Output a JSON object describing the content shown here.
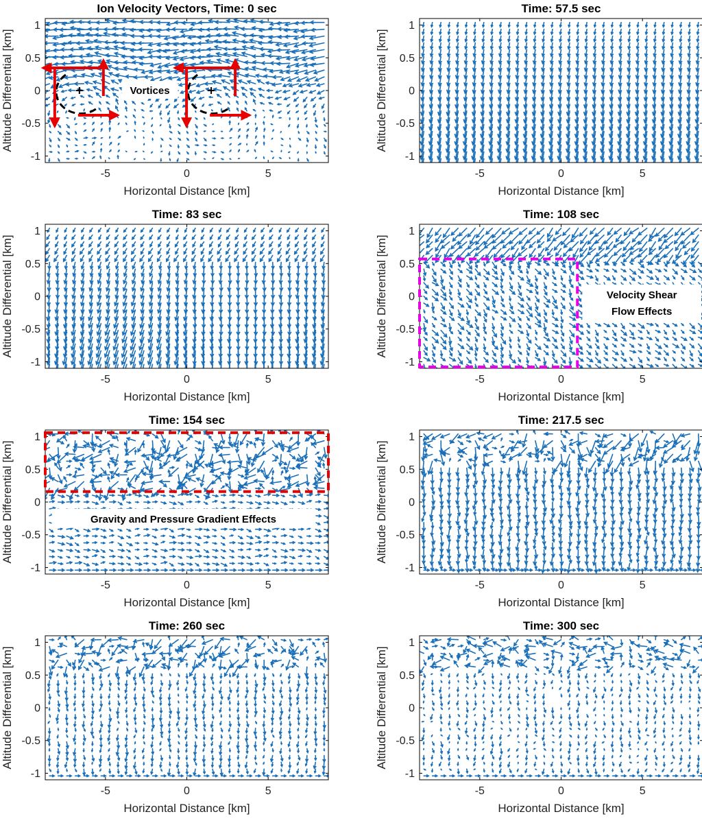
{
  "chart_data": [
    {
      "type": "quiver",
      "title": "Ion Velocity Vectors, Time: 0 sec",
      "time_sec": 0,
      "pattern": "vortices",
      "xlabel": "Horizontal Distance [km]",
      "ylabel": "Altitude Differential [km]",
      "xlim": [
        -8.7,
        8.7
      ],
      "ylim": [
        -1.1,
        1.1
      ],
      "xticks": [
        -5,
        0,
        5
      ],
      "xtick_labels": [
        "-5",
        "0",
        "5"
      ],
      "yticks": [
        1,
        0.5,
        0,
        -0.5,
        -1
      ],
      "ytick_labels": [
        "1",
        "0.5",
        "0",
        "-0.5",
        "-1"
      ],
      "annotations": [
        {
          "text": "Vortices",
          "type": "label"
        },
        {
          "type": "vortex-marker",
          "x": -6.6,
          "y": 0
        },
        {
          "type": "vortex-marker",
          "x": 1.5,
          "y": 0
        }
      ]
    },
    {
      "type": "quiver",
      "title": "Time: 57.5 sec",
      "time_sec": 57.5,
      "pattern": "downward-tilted",
      "xlabel": "Horizontal Distance [km]",
      "ylabel": "Altitude Differential [km]",
      "xlim": [
        -8.7,
        8.7
      ],
      "ylim": [
        -1.1,
        1.1
      ],
      "xticks": [
        -5,
        0,
        5
      ],
      "xtick_labels": [
        "-5",
        "0",
        "5"
      ],
      "yticks": [
        1,
        0.5,
        0,
        -0.5,
        -1
      ],
      "ytick_labels": [
        "1",
        "0.5",
        "0",
        "-0.5",
        "-1"
      ],
      "annotations": []
    },
    {
      "type": "quiver",
      "title": "Time: 83 sec",
      "time_sec": 83,
      "pattern": "downward-curved",
      "xlabel": "Horizontal Distance [km]",
      "ylabel": "Altitude Differential [km]",
      "xlim": [
        -8.7,
        8.7
      ],
      "ylim": [
        -1.1,
        1.1
      ],
      "xticks": [
        -5,
        0,
        5
      ],
      "xtick_labels": [
        "-5",
        "0",
        "5"
      ],
      "yticks": [
        1,
        0.5,
        0,
        -0.5,
        -1
      ],
      "ytick_labels": [
        "1",
        "0.5",
        "0",
        "-0.5",
        "-1"
      ],
      "annotations": []
    },
    {
      "type": "quiver",
      "title": "Time: 108 sec",
      "time_sec": 108,
      "pattern": "shear",
      "xlabel": "Horizontal Distance [km]",
      "ylabel": "Altitude Differential [km]",
      "xlim": [
        -8.7,
        8.7
      ],
      "ylim": [
        -1.1,
        1.1
      ],
      "xticks": [
        -5,
        0,
        5
      ],
      "xtick_labels": [
        "-5",
        "0",
        "5"
      ],
      "yticks": [
        1,
        0.5,
        0,
        -0.5,
        -1
      ],
      "ytick_labels": [
        "1",
        "0.5",
        "0",
        "-0.5",
        "-1"
      ],
      "annotations": [
        {
          "text_lines": [
            "Velocity Shear",
            "Flow Effects"
          ],
          "type": "label"
        },
        {
          "type": "dashed-box",
          "color": "#e600e6",
          "x0": -8.7,
          "x1": 1.0,
          "y0": -1.08,
          "y1": 0.57
        }
      ]
    },
    {
      "type": "quiver",
      "title": "Time: 154 sec",
      "time_sec": 154,
      "pattern": "turbulent-top",
      "xlabel": "Horizontal Distance [km]",
      "ylabel": "Altitude Differential [km]",
      "xlim": [
        -8.7,
        8.7
      ],
      "ylim": [
        -1.1,
        1.1
      ],
      "xticks": [
        -5,
        0,
        5
      ],
      "xtick_labels": [
        "-5",
        "0",
        "5"
      ],
      "yticks": [
        1,
        0.5,
        0,
        -0.5,
        -1
      ],
      "ytick_labels": [
        "1",
        "0.5",
        "0",
        "-0.5",
        "-1"
      ],
      "annotations": [
        {
          "text": "Gravity and Pressure Gradient Effects",
          "type": "label"
        },
        {
          "type": "dashed-box",
          "color": "#e60000",
          "x0": -8.7,
          "x1": 8.7,
          "y0": 0.16,
          "y1": 1.06
        }
      ]
    },
    {
      "type": "quiver",
      "title": "Time: 217.5 sec",
      "time_sec": 217.5,
      "pattern": "mixed",
      "xlabel": "Horizontal Distance [km]",
      "ylabel": "Altitude Differential [km]",
      "xlim": [
        -8.7,
        8.7
      ],
      "ylim": [
        -1.1,
        1.1
      ],
      "xticks": [
        -5,
        0,
        5
      ],
      "xtick_labels": [
        "-5",
        "0",
        "5"
      ],
      "yticks": [
        1,
        0.5,
        0,
        -0.5,
        -1
      ],
      "ytick_labels": [
        "1",
        "0.5",
        "0",
        "-0.5",
        "-1"
      ],
      "annotations": []
    },
    {
      "type": "quiver",
      "title": "Time: 260 sec",
      "time_sec": 260,
      "pattern": "decaying",
      "xlabel": "Horizontal Distance [km]",
      "ylabel": "Altitude Differential [km]",
      "xlim": [
        -8.7,
        8.7
      ],
      "ylim": [
        -1.1,
        1.1
      ],
      "xticks": [
        -5,
        0,
        5
      ],
      "xtick_labels": [
        "-5",
        "0",
        "5"
      ],
      "yticks": [
        1,
        0.5,
        0,
        -0.5,
        -1
      ],
      "ytick_labels": [
        "1",
        "0.5",
        "0",
        "-0.5",
        "-1"
      ],
      "annotations": []
    },
    {
      "type": "quiver",
      "title": "Time: 300 sec",
      "time_sec": 300,
      "pattern": "decaying-late",
      "xlabel": "Horizontal Distance [km]",
      "ylabel": "Altitude Differential [km]",
      "xlim": [
        -8.7,
        8.7
      ],
      "ylim": [
        -1.1,
        1.1
      ],
      "xticks": [
        -5,
        0,
        5
      ],
      "xtick_labels": [
        "-5",
        "0",
        "5"
      ],
      "yticks": [
        1,
        0.5,
        0,
        -0.5,
        -1
      ],
      "ytick_labels": [
        "1",
        "0.5",
        "0",
        "-0.5",
        "-1"
      ],
      "annotations": []
    }
  ],
  "colors": {
    "arrow": "#1a6fb8",
    "axis": "#000000",
    "annotation_red": "#e60000",
    "annotation_magenta": "#e600e6",
    "vortex": "#000000"
  }
}
